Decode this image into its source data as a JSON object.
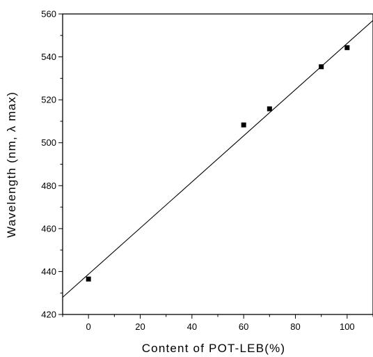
{
  "chart_data": {
    "type": "scatter",
    "title": "",
    "xlabel": "Content of POT-LEB(%)",
    "ylabel": "Wavelength (nm, λ max)",
    "xlim": [
      -10,
      110
    ],
    "ylim": [
      420,
      560
    ],
    "x_ticks": [
      0,
      20,
      40,
      60,
      80,
      100
    ],
    "y_ticks": [
      420,
      440,
      460,
      480,
      500,
      520,
      540,
      560
    ],
    "x_tick_labels": [
      "0",
      "20",
      "40",
      "60",
      "80",
      "100"
    ],
    "y_tick_labels": [
      "420",
      "440",
      "460",
      "480",
      "500",
      "520",
      "540",
      "560"
    ],
    "grid": false,
    "series": [
      {
        "x": [
          0,
          60,
          70,
          90,
          100
        ],
        "y": [
          436.5,
          508.3,
          515.8,
          535.4,
          544.3
        ],
        "marker": "square",
        "color": "#000000"
      }
    ],
    "fit_line": {
      "x": [
        -10,
        110
      ],
      "y": [
        428,
        557
      ],
      "color": "#000000"
    }
  }
}
